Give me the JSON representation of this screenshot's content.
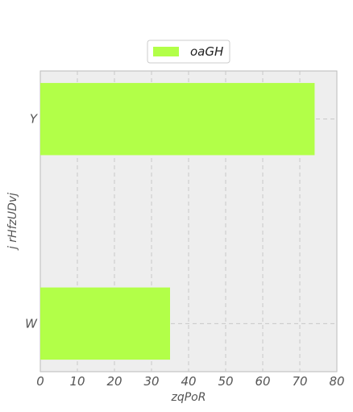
{
  "chart_data": {
    "type": "bar",
    "orientation": "horizontal",
    "categories": [
      "W",
      "Y"
    ],
    "series": [
      {
        "name": "oaGH",
        "values": [
          35,
          74
        ],
        "color": "#b2ff48"
      }
    ],
    "xlabel": "zqPoR",
    "ylabel": "j rHfzUDvj",
    "xlim": [
      0,
      80
    ],
    "xticks": [
      0,
      10,
      20,
      30,
      40,
      50,
      60,
      70,
      80
    ],
    "grid": true,
    "legend": "top-center",
    "background_color": "#eeeeee"
  }
}
